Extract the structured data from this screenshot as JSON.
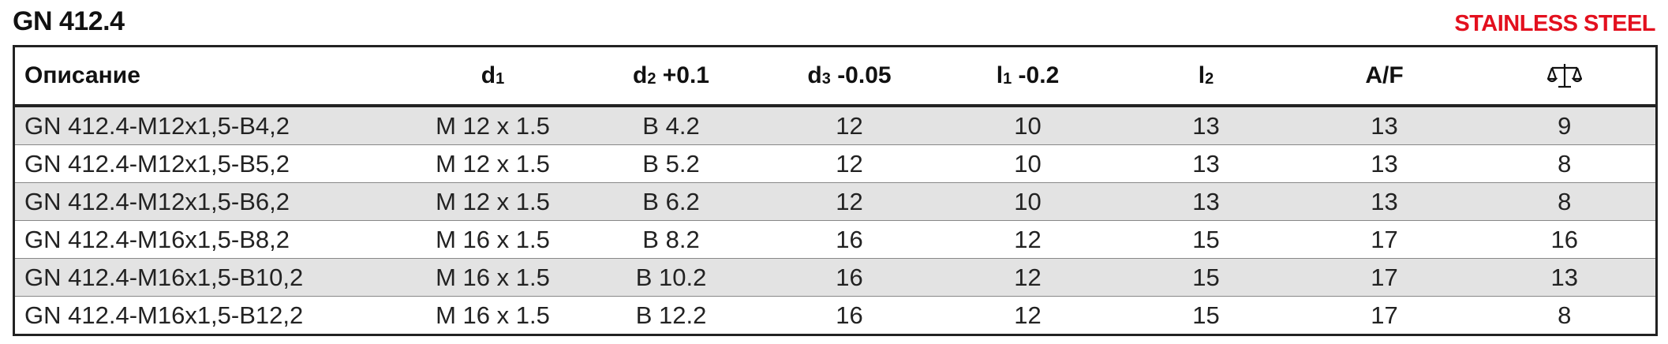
{
  "header": {
    "title": "GN 412.4",
    "badge": "STAINLESS STEEL"
  },
  "table": {
    "columns": [
      {
        "text": "Описание"
      },
      {
        "text": "d",
        "sub": "1"
      },
      {
        "text": "d",
        "sub": "2",
        "suffix": " +0.1"
      },
      {
        "text": "d",
        "sub": "3",
        "suffix": " -0.05"
      },
      {
        "text": "l",
        "sub": "1",
        "suffix": " -0.2"
      },
      {
        "text": "l",
        "sub": "2"
      },
      {
        "text": "A/F"
      }
    ],
    "rows": [
      [
        "GN 412.4-M12x1,5-B4,2",
        "M 12 x 1.5",
        "B 4.2",
        12,
        10,
        13,
        13,
        9
      ],
      [
        "GN 412.4-M12x1,5-B5,2",
        "M 12 x 1.5",
        "B 5.2",
        12,
        10,
        13,
        13,
        8
      ],
      [
        "GN 412.4-M12x1,5-B6,2",
        "M 12 x 1.5",
        "B 6.2",
        12,
        10,
        13,
        13,
        8
      ],
      [
        "GN 412.4-M16x1,5-B8,2",
        "M 16 x 1.5",
        "B 8.2",
        16,
        12,
        15,
        17,
        16
      ],
      [
        "GN 412.4-M16x1,5-B10,2",
        "M 16 x 1.5",
        "B 10.2",
        16,
        12,
        15,
        17,
        13
      ],
      [
        "GN 412.4-M16x1,5-B12,2",
        "M 16 x 1.5",
        "B 12.2",
        16,
        12,
        15,
        17,
        8
      ]
    ]
  }
}
